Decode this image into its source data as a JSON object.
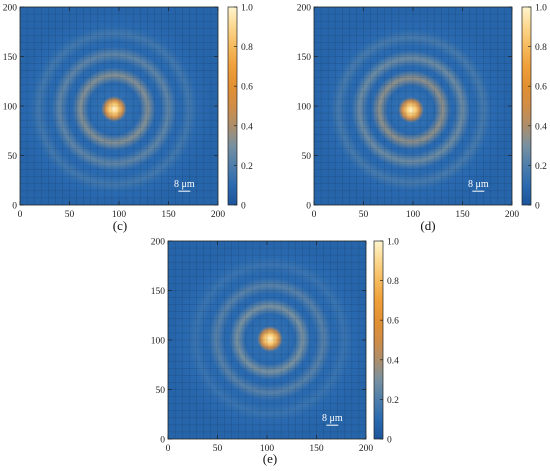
{
  "chart_data": [
    {
      "panel": "(c)",
      "type": "heatmap",
      "title": "",
      "xlabel": "",
      "ylabel": "",
      "xlim": [
        0,
        200
      ],
      "ylim": [
        0,
        200
      ],
      "x_ticks": [
        "0",
        "50",
        "100",
        "150",
        "200"
      ],
      "y_ticks": [
        "0",
        "50",
        "100",
        "150",
        "200"
      ],
      "colorbar": {
        "range": [
          0,
          1.0
        ],
        "ticks": [
          "0",
          "0.2",
          "0.4",
          "0.6",
          "0.8",
          "1.0"
        ]
      },
      "peak": {
        "x": 95,
        "y": 97,
        "value": 1.0
      },
      "rings": [
        {
          "radius": 34,
          "value": 0.32
        },
        {
          "radius": 55,
          "value": 0.24
        },
        {
          "radius": 76,
          "value": 0.17
        }
      ],
      "background_value": 0.08,
      "scale_bar_label": "8 μm"
    },
    {
      "panel": "(d)",
      "type": "heatmap",
      "title": "",
      "xlabel": "",
      "ylabel": "",
      "xlim": [
        0,
        200
      ],
      "ylim": [
        0,
        200
      ],
      "x_ticks": [
        "0",
        "50",
        "100",
        "150",
        "200"
      ],
      "y_ticks": [
        "0",
        "50",
        "100",
        "150",
        "200"
      ],
      "colorbar": {
        "range": [
          0,
          1.0
        ],
        "ticks": [
          "0",
          "0.2",
          "0.4",
          "0.6",
          "0.8",
          "1.0"
        ]
      },
      "peak": {
        "x": 98,
        "y": 96,
        "value": 1.0
      },
      "rings": [
        {
          "radius": 32,
          "value": 0.34
        },
        {
          "radius": 52,
          "value": 0.27
        },
        {
          "radius": 73,
          "value": 0.18
        }
      ],
      "background_value": 0.08,
      "scale_bar_label": "8 μm"
    },
    {
      "panel": "(e)",
      "type": "heatmap",
      "title": "",
      "xlabel": "",
      "ylabel": "",
      "xlim": [
        0,
        200
      ],
      "ylim": [
        0,
        200
      ],
      "x_ticks": [
        "0",
        "50",
        "100",
        "150",
        "200"
      ],
      "y_ticks": [
        "0",
        "50",
        "100",
        "150",
        "200"
      ],
      "colorbar": {
        "range": [
          0,
          1.0
        ],
        "ticks": [
          "0",
          "0.2",
          "0.4",
          "0.6",
          "0.8",
          "1.0"
        ]
      },
      "peak": {
        "x": 103,
        "y": 101,
        "value": 1.0
      },
      "rings": [
        {
          "radius": 33,
          "value": 0.3
        },
        {
          "radius": 54,
          "value": 0.22
        },
        {
          "radius": 75,
          "value": 0.15
        }
      ],
      "background_value": 0.08,
      "scale_bar_label": "8 μm"
    }
  ]
}
